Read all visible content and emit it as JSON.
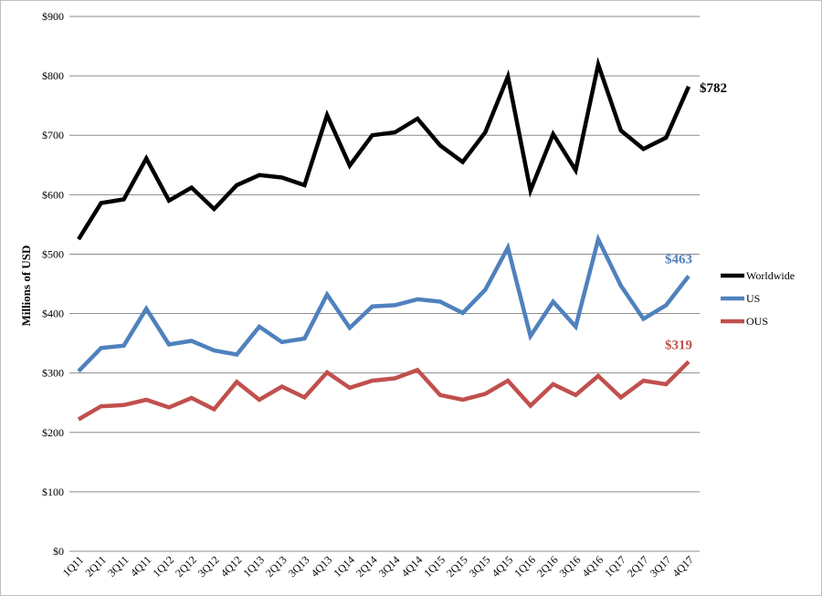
{
  "chart_data": {
    "type": "line",
    "title": "",
    "xlabel": "",
    "ylabel": "Millions of USD",
    "ylim": [
      0,
      900
    ],
    "yticks": [
      0,
      100,
      200,
      300,
      400,
      500,
      600,
      700,
      800,
      900
    ],
    "ytick_labels": [
      "$0",
      "$100",
      "$200",
      "$300",
      "$400",
      "$500",
      "$600",
      "$700",
      "$800",
      "$900"
    ],
    "grid": true,
    "legend": "right",
    "categories": [
      "1Q11",
      "2Q11",
      "3Q11",
      "4Q11",
      "1Q12",
      "2Q12",
      "3Q12",
      "4Q12",
      "1Q13",
      "2Q13",
      "3Q13",
      "4Q13",
      "1Q14",
      "2Q14",
      "3Q14",
      "4Q14",
      "1Q15",
      "2Q15",
      "3Q15",
      "4Q15",
      "1Q16",
      "2Q16",
      "3Q16",
      "4Q16",
      "1Q17",
      "2Q17",
      "3Q17",
      "4Q17"
    ],
    "series": [
      {
        "name": "Worldwide",
        "color": "#000000",
        "end_label": "$782",
        "values": [
          525,
          586,
          592,
          661,
          590,
          612,
          576,
          616,
          633,
          629,
          616,
          734,
          649,
          700,
          705,
          728,
          683,
          655,
          705,
          799,
          607,
          702,
          641,
          819,
          708,
          677,
          696,
          782
        ]
      },
      {
        "name": "US",
        "color": "#4f81bd",
        "end_label": "$463",
        "values": [
          303,
          342,
          346,
          408,
          348,
          354,
          338,
          331,
          378,
          352,
          358,
          432,
          376,
          412,
          414,
          424,
          420,
          401,
          440,
          511,
          362,
          420,
          378,
          525,
          447,
          391,
          414,
          463
        ]
      },
      {
        "name": "OUS",
        "color": "#c0504d",
        "end_label": "$319",
        "values": [
          222,
          244,
          246,
          255,
          242,
          258,
          239,
          285,
          255,
          277,
          259,
          301,
          275,
          287,
          291,
          305,
          263,
          255,
          265,
          287,
          245,
          281,
          263,
          295,
          259,
          287,
          281,
          319
        ]
      }
    ]
  }
}
